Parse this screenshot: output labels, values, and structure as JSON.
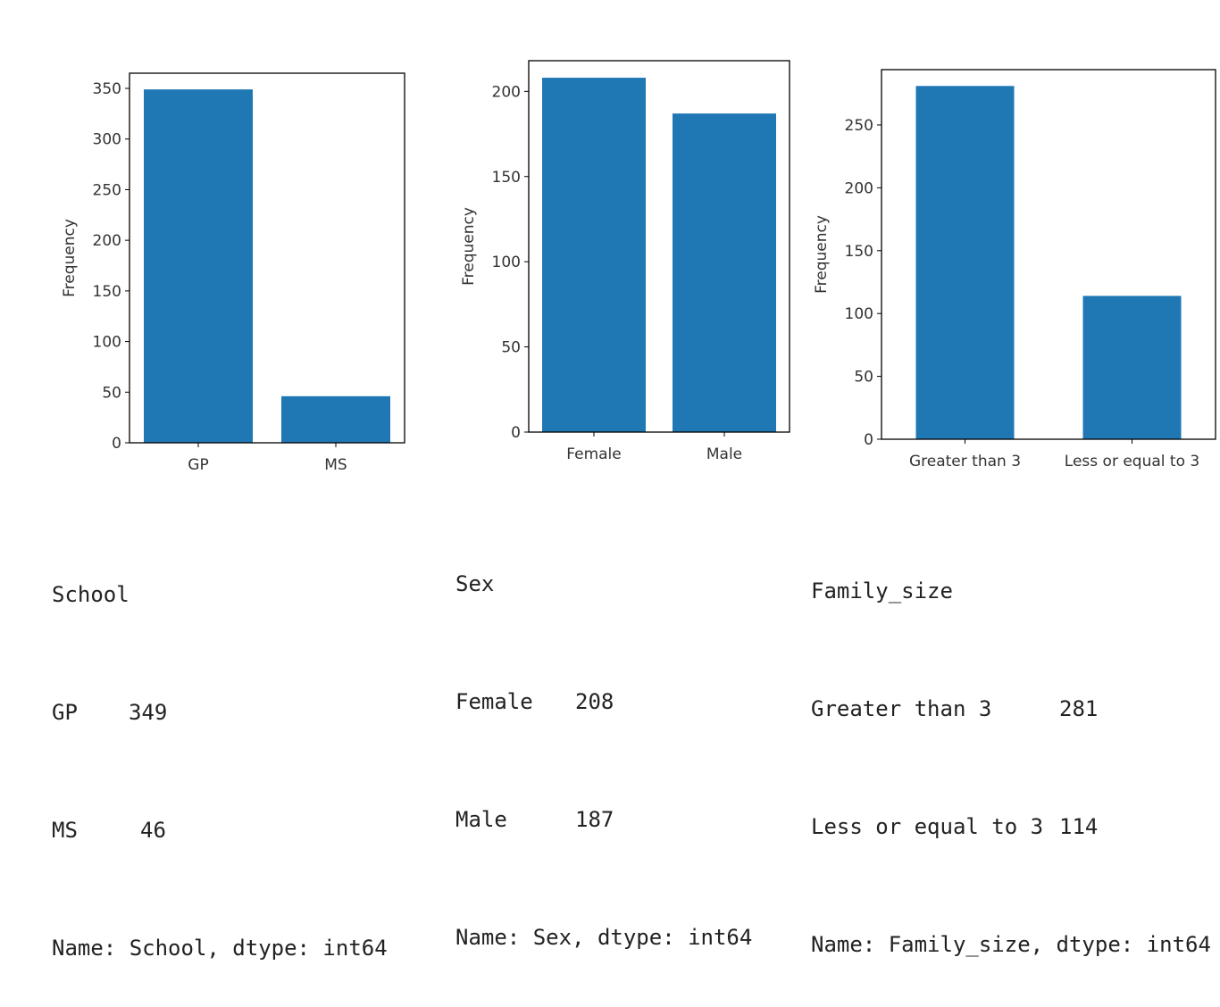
{
  "chart_data": [
    {
      "type": "bar",
      "categories": [
        "GP",
        "MS"
      ],
      "values": [
        349,
        46
      ],
      "ylabel": "Frequency",
      "ylim": [
        0,
        365
      ],
      "yticks": [
        0,
        50,
        100,
        150,
        200,
        250,
        300,
        350
      ],
      "color": "#1f77b4"
    },
    {
      "type": "bar",
      "categories": [
        "Female",
        "Male"
      ],
      "values": [
        208,
        187
      ],
      "ylabel": "Frequency",
      "ylim": [
        0,
        218
      ],
      "yticks": [
        0,
        50,
        100,
        150,
        200
      ],
      "color": "#1f77b4"
    },
    {
      "type": "bar",
      "categories": [
        "Greater than 3",
        "Less or equal to 3"
      ],
      "values": [
        281,
        114
      ],
      "ylabel": "Frequency",
      "ylim": [
        0,
        294
      ],
      "yticks": [
        0,
        50,
        100,
        150,
        200,
        250
      ],
      "color": "#1f77b4"
    }
  ],
  "outputs": [
    {
      "header": "School",
      "rows": [
        {
          "label": "GP",
          "value": "349"
        },
        {
          "label": "MS",
          "value": "46"
        }
      ],
      "footer": "Name: School, dtype: int64"
    },
    {
      "header": "Sex",
      "rows": [
        {
          "label": "Female",
          "value": "208"
        },
        {
          "label": "Male",
          "value": "187"
        }
      ],
      "footer": "Name: Sex, dtype: int64"
    },
    {
      "header": "Family_size",
      "rows": [
        {
          "label": "Greater than 3",
          "value": "281"
        },
        {
          "label": "Less or equal to 3",
          "value": "114"
        }
      ],
      "footer": "Name: Family_size, dtype: int64"
    }
  ]
}
